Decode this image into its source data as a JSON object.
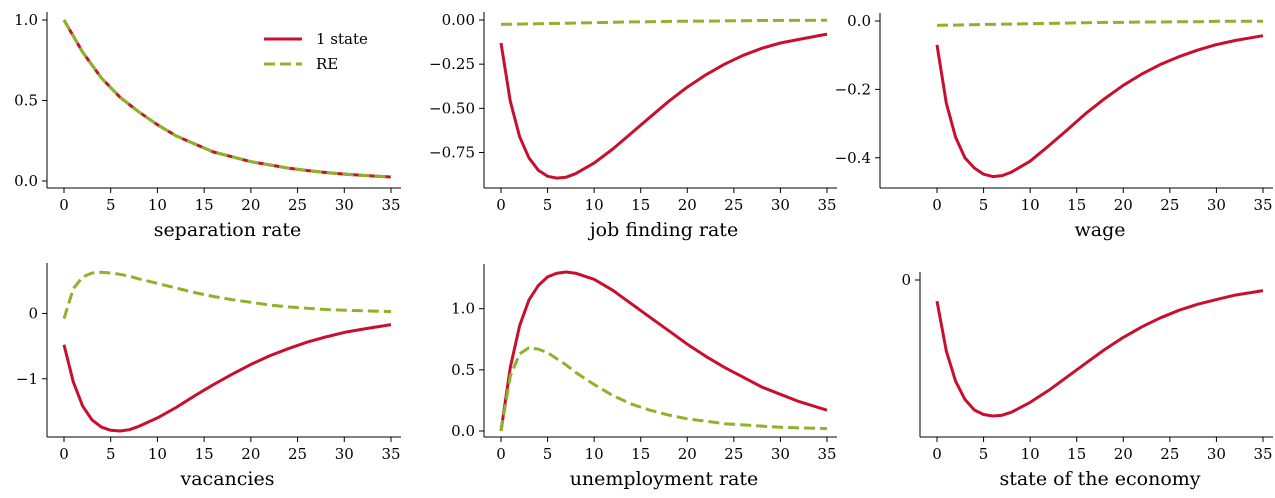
{
  "colors": {
    "one_state": "#c8102e",
    "re": "#8db32a"
  },
  "legend": {
    "placement": "upper-right of first panel",
    "one_state_label": "1 state",
    "re_label": "RE"
  },
  "chart_data": [
    {
      "type": "line",
      "xlabel": "separation rate",
      "xlim": [
        0,
        35
      ],
      "ylim": [
        0,
        1.0
      ],
      "xticks": [
        0,
        5,
        10,
        15,
        20,
        25,
        30,
        35
      ],
      "yticks": [
        0,
        0.5,
        1.0
      ],
      "ytick_labels": [
        "0.0",
        "0.5",
        "1.0"
      ],
      "x": [
        0,
        2,
        4,
        6,
        8,
        10,
        12,
        14,
        16,
        18,
        20,
        22,
        24,
        26,
        28,
        30,
        32,
        34,
        35
      ],
      "series": [
        {
          "name": "1 state",
          "color": "#c8102e",
          "dashed": false,
          "values": [
            1.0,
            0.8,
            0.64,
            0.52,
            0.43,
            0.35,
            0.28,
            0.23,
            0.18,
            0.15,
            0.12,
            0.1,
            0.08,
            0.065,
            0.053,
            0.043,
            0.035,
            0.028,
            0.025
          ]
        },
        {
          "name": "RE",
          "color": "#8db32a",
          "dashed": true,
          "values": [
            1.0,
            0.8,
            0.64,
            0.52,
            0.43,
            0.35,
            0.28,
            0.23,
            0.18,
            0.15,
            0.12,
            0.1,
            0.08,
            0.065,
            0.053,
            0.043,
            0.035,
            0.028,
            0.025
          ]
        }
      ]
    },
    {
      "type": "line",
      "xlabel": "job finding rate",
      "xlim": [
        0,
        35
      ],
      "ylim": [
        -0.9,
        0.0
      ],
      "xticks": [
        0,
        5,
        10,
        15,
        20,
        25,
        30,
        35
      ],
      "yticks": [
        0.0,
        -0.25,
        -0.5,
        -0.75
      ],
      "ytick_labels": [
        "0.00",
        "−0.25",
        "−0.50",
        "−0.75"
      ],
      "x": [
        0,
        1,
        2,
        3,
        4,
        5,
        6,
        7,
        8,
        10,
        12,
        14,
        16,
        18,
        20,
        22,
        24,
        26,
        28,
        30,
        32,
        35
      ],
      "series": [
        {
          "name": "1 state",
          "color": "#c8102e",
          "dashed": false,
          "values": [
            -0.13,
            -0.46,
            -0.66,
            -0.78,
            -0.85,
            -0.885,
            -0.895,
            -0.89,
            -0.87,
            -0.81,
            -0.73,
            -0.64,
            -0.55,
            -0.46,
            -0.38,
            -0.31,
            -0.25,
            -0.2,
            -0.16,
            -0.13,
            -0.11,
            -0.08
          ]
        },
        {
          "name": "RE",
          "color": "#8db32a",
          "dashed": true,
          "values": [
            -0.025,
            -0.024,
            -0.023,
            -0.022,
            -0.021,
            -0.02,
            -0.019,
            -0.018,
            -0.017,
            -0.015,
            -0.013,
            -0.011,
            -0.01,
            -0.008,
            -0.007,
            -0.006,
            -0.005,
            -0.004,
            -0.003,
            -0.002,
            -0.002,
            -0.001
          ]
        }
      ]
    },
    {
      "type": "line",
      "xlabel": "wage",
      "xlim": [
        0,
        35
      ],
      "ylim": [
        -0.465,
        0.0
      ],
      "xticks": [
        0,
        5,
        10,
        15,
        20,
        25,
        30,
        35
      ],
      "yticks": [
        0.0,
        -0.2,
        -0.4
      ],
      "ytick_labels": [
        "0.0",
        "−0.2",
        "−0.4"
      ],
      "x": [
        0,
        1,
        2,
        3,
        4,
        5,
        6,
        7,
        8,
        10,
        12,
        14,
        16,
        18,
        20,
        22,
        24,
        26,
        28,
        30,
        32,
        35
      ],
      "series": [
        {
          "name": "1 state",
          "color": "#c8102e",
          "dashed": false,
          "values": [
            -0.07,
            -0.24,
            -0.34,
            -0.4,
            -0.43,
            -0.448,
            -0.455,
            -0.452,
            -0.442,
            -0.41,
            -0.365,
            -0.318,
            -0.27,
            -0.227,
            -0.188,
            -0.155,
            -0.127,
            -0.104,
            -0.085,
            -0.069,
            -0.057,
            -0.043
          ]
        },
        {
          "name": "RE",
          "color": "#8db32a",
          "dashed": true,
          "values": [
            -0.013,
            -0.012,
            -0.012,
            -0.011,
            -0.011,
            -0.01,
            -0.01,
            -0.009,
            -0.009,
            -0.008,
            -0.007,
            -0.006,
            -0.005,
            -0.004,
            -0.004,
            -0.003,
            -0.003,
            -0.002,
            -0.002,
            -0.001,
            -0.001,
            -0.001
          ]
        }
      ]
    },
    {
      "type": "line",
      "xlabel": "vacancies",
      "xlim": [
        0,
        35
      ],
      "ylim": [
        -1.8,
        0.65
      ],
      "xticks": [
        0,
        5,
        10,
        15,
        20,
        25,
        30,
        35
      ],
      "yticks": [
        0,
        -1
      ],
      "ytick_labels": [
        "0",
        "−1"
      ],
      "x": [
        0,
        1,
        2,
        3,
        4,
        5,
        6,
        7,
        8,
        10,
        12,
        14,
        16,
        18,
        20,
        22,
        24,
        26,
        28,
        30,
        32,
        35
      ],
      "series": [
        {
          "name": "1 state",
          "color": "#c8102e",
          "dashed": false,
          "values": [
            -0.48,
            -1.05,
            -1.42,
            -1.63,
            -1.74,
            -1.79,
            -1.8,
            -1.78,
            -1.73,
            -1.6,
            -1.44,
            -1.26,
            -1.09,
            -0.93,
            -0.78,
            -0.65,
            -0.54,
            -0.44,
            -0.36,
            -0.29,
            -0.24,
            -0.17
          ]
        },
        {
          "name": "RE",
          "color": "#8db32a",
          "dashed": true,
          "values": [
            -0.08,
            0.38,
            0.56,
            0.62,
            0.63,
            0.62,
            0.6,
            0.57,
            0.53,
            0.46,
            0.39,
            0.32,
            0.26,
            0.21,
            0.17,
            0.13,
            0.1,
            0.08,
            0.06,
            0.05,
            0.04,
            0.03
          ]
        }
      ]
    },
    {
      "type": "line",
      "xlabel": "unemployment rate",
      "xlim": [
        0,
        35
      ],
      "ylim": [
        0,
        1.3
      ],
      "xticks": [
        0,
        5,
        10,
        15,
        20,
        25,
        30,
        35
      ],
      "yticks": [
        0,
        0.5,
        1.0
      ],
      "ytick_labels": [
        "0.0",
        "0.5",
        "1.0"
      ],
      "x": [
        0,
        1,
        2,
        3,
        4,
        5,
        6,
        7,
        8,
        10,
        12,
        14,
        16,
        18,
        20,
        22,
        24,
        26,
        28,
        30,
        32,
        35
      ],
      "series": [
        {
          "name": "1 state",
          "color": "#c8102e",
          "dashed": false,
          "values": [
            0.0,
            0.52,
            0.86,
            1.07,
            1.19,
            1.26,
            1.29,
            1.3,
            1.29,
            1.24,
            1.15,
            1.04,
            0.93,
            0.82,
            0.71,
            0.61,
            0.52,
            0.44,
            0.36,
            0.3,
            0.24,
            0.17
          ]
        },
        {
          "name": "RE",
          "color": "#8db32a",
          "dashed": true,
          "values": [
            0.0,
            0.45,
            0.63,
            0.68,
            0.67,
            0.64,
            0.59,
            0.54,
            0.48,
            0.38,
            0.29,
            0.22,
            0.17,
            0.13,
            0.1,
            0.08,
            0.06,
            0.05,
            0.04,
            0.03,
            0.025,
            0.02
          ]
        }
      ]
    },
    {
      "type": "line",
      "xlabel": "state of the economy",
      "xlim": [
        0,
        35
      ],
      "ylim": [
        -0.9,
        0.0
      ],
      "xticks": [
        0,
        5,
        10,
        15,
        20,
        25,
        30,
        35
      ],
      "yticks": [
        0
      ],
      "ytick_labels": [
        "0"
      ],
      "x": [
        0,
        1,
        2,
        3,
        4,
        5,
        6,
        7,
        8,
        10,
        12,
        14,
        16,
        18,
        20,
        22,
        24,
        26,
        28,
        30,
        32,
        35
      ],
      "series": [
        {
          "name": "1 state",
          "color": "#c8102e",
          "dashed": false,
          "values": [
            -0.14,
            -0.47,
            -0.67,
            -0.79,
            -0.86,
            -0.89,
            -0.9,
            -0.895,
            -0.875,
            -0.81,
            -0.73,
            -0.64,
            -0.55,
            -0.46,
            -0.38,
            -0.31,
            -0.25,
            -0.2,
            -0.16,
            -0.13,
            -0.1,
            -0.07
          ]
        }
      ]
    }
  ]
}
